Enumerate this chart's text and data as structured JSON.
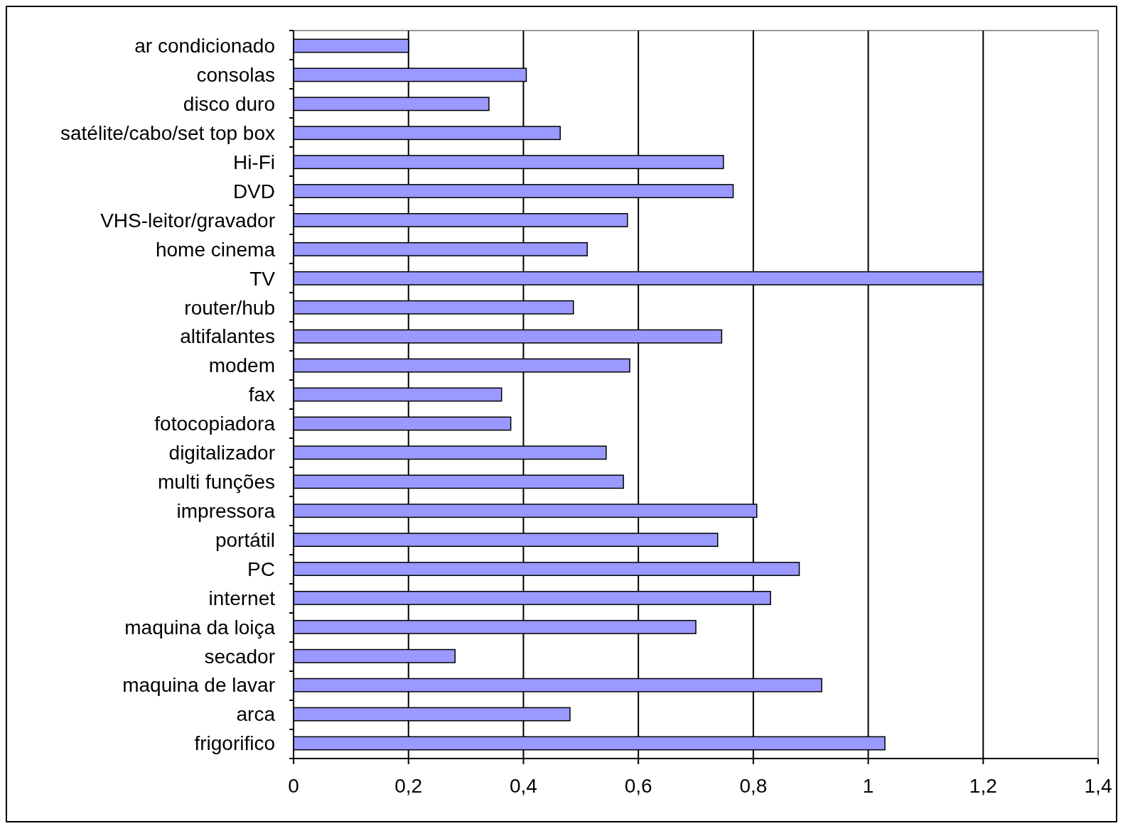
{
  "chart_data": {
    "type": "bar",
    "orientation": "horizontal",
    "categories": [
      "ar condicionado",
      "consolas",
      "disco duro",
      "satélite/cabo/set top box",
      "Hi-Fi",
      "DVD",
      "VHS-leitor/gravador",
      "home cinema",
      "TV",
      "router/hub",
      "altifalantes",
      "modem",
      "fax",
      "fotocopiadora",
      "digitalizador",
      "multi funções",
      "impressora",
      "portátil",
      "PC",
      "internet",
      "maquina da loiça",
      "secador",
      "maquina de lavar",
      "arca",
      "frigorifico"
    ],
    "values": [
      0.2,
      0.405,
      0.34,
      0.464,
      0.748,
      0.765,
      0.581,
      0.511,
      1.2,
      0.487,
      0.745,
      0.585,
      0.362,
      0.378,
      0.544,
      0.574,
      0.806,
      0.738,
      0.88,
      0.83,
      0.7,
      0.281,
      0.919,
      0.481,
      1.029
    ],
    "color": "#9999ff",
    "xlim": [
      0,
      1.4
    ],
    "xticks": [
      0,
      {
        "value": 0.2,
        "label": "0,2"
      },
      {
        "value": 0.4,
        "label": "0,4"
      },
      {
        "value": 0.6,
        "label": "0,6"
      },
      {
        "value": 0.8,
        "label": "0,8"
      },
      1,
      {
        "value": 1.2,
        "label": "1,2"
      },
      {
        "value": 1.4,
        "label": "1,4"
      }
    ],
    "grid": "x"
  }
}
